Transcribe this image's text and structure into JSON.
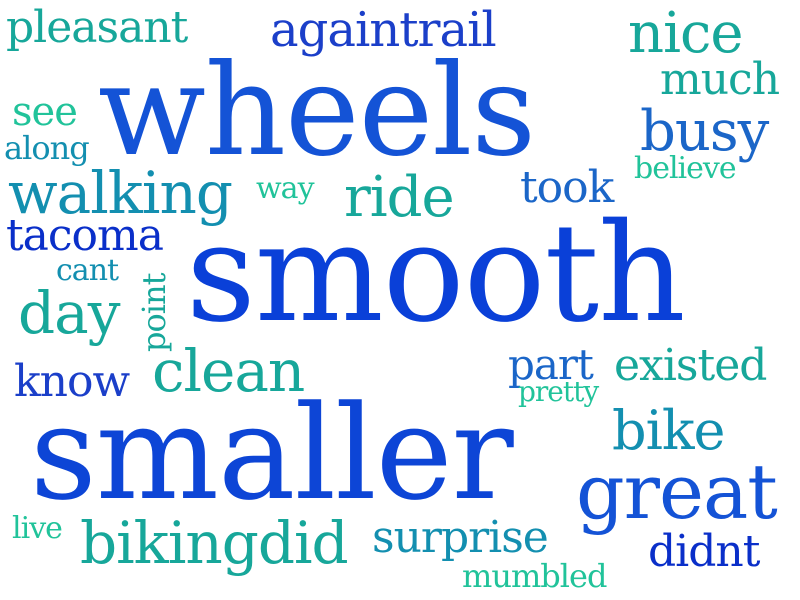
{
  "words": {
    "pleasant": "pleasant",
    "againtrail": "againtrail",
    "nice": "nice",
    "wheels": "wheels",
    "much": "much",
    "see": "see",
    "busy": "busy",
    "along": "along",
    "believe": "believe",
    "walking": "walking",
    "way": "way",
    "ride": "ride",
    "took": "took",
    "tacoma": "tacoma",
    "cant": "cant",
    "smooth": "smooth",
    "day": "day",
    "point": "point",
    "know": "know",
    "clean": "clean",
    "part": "part",
    "existed": "existed",
    "pretty": "pretty",
    "smaller": "smaller",
    "bike": "bike",
    "great": "great",
    "live": "live",
    "bikingdid": "bikingdid",
    "surprise": "surprise",
    "didnt": "didnt",
    "mumbled": "mumbled"
  },
  "colors": {
    "blue_dark": "#0a2fc9",
    "blue": "#1453d6",
    "blue_mid": "#1b66c8",
    "teal": "#138fb0",
    "teal_green": "#17a79a",
    "green": "#21c39a"
  }
}
